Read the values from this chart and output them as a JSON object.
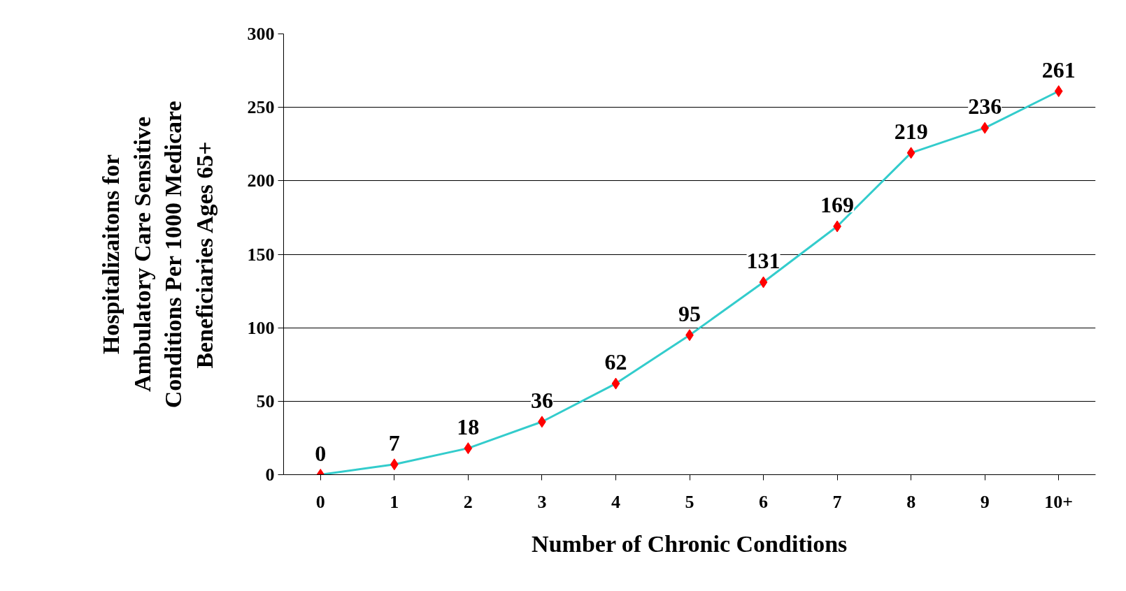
{
  "chart_data": {
    "type": "line",
    "xlabel": "Number of Chronic Conditions",
    "ylabel": "Hospitalizaitons for\nAmbulatory Care Sensitive\nConditions Per 1000 Medicare\nBeneficiaries Ages 65+",
    "categories": [
      "0",
      "1",
      "2",
      "3",
      "4",
      "5",
      "6",
      "7",
      "8",
      "9",
      "10+"
    ],
    "series": [
      {
        "color": "#33cccc",
        "colors": [
          "#ff0000",
          "#ff0000",
          "#ff0000",
          "#ff0000",
          "#ff0000",
          "#ff0000",
          "#ff0000",
          "#ff0000",
          "#ff0000",
          "#ff0000",
          "#ff0000"
        ],
        "values": [
          0,
          7,
          18,
          36,
          62,
          95,
          131,
          169,
          219,
          236,
          261
        ]
      }
    ],
    "ylim": [
      0,
      300
    ],
    "yticks": [
      0,
      50,
      100,
      150,
      200,
      250,
      300
    ],
    "grid": "y",
    "marker": "diamond",
    "line_style": "solid",
    "data_labels": true
  }
}
